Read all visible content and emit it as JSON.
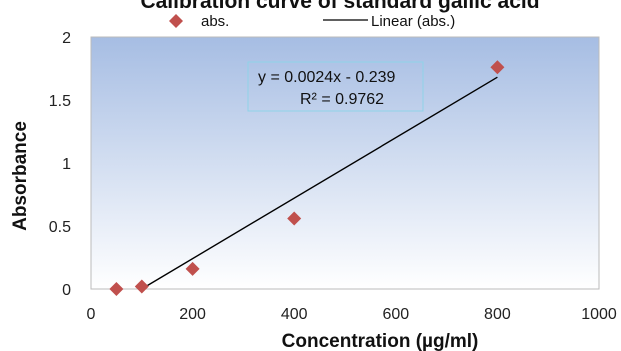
{
  "chart_data": {
    "type": "scatter",
    "title": "Calibration curve of standard gallic acid",
    "xlabel": "Concentration (µg/ml)",
    "ylabel": "Absorbance",
    "xlim": [
      0,
      1000
    ],
    "ylim": [
      0,
      2
    ],
    "xticks": [
      0,
      200,
      400,
      600,
      800,
      1000
    ],
    "yticks": [
      0,
      0.5,
      1,
      1.5,
      2
    ],
    "xtick_labels": [
      "0",
      "200",
      "400",
      "600",
      "800",
      "1000"
    ],
    "ytick_labels": [
      "0",
      "0.5",
      "1",
      "1.5",
      "2"
    ],
    "grid": false,
    "legend_position": "top",
    "series": [
      {
        "name": "abs.",
        "x": [
          50,
          100,
          200,
          400,
          800
        ],
        "y": [
          0.0,
          0.02,
          0.16,
          0.56,
          1.76
        ],
        "color": "#c0504d",
        "marker": "diamond"
      }
    ],
    "trendline": {
      "name": "Linear (abs.)",
      "slope": 0.0024,
      "intercept": -0.239,
      "x_range": [
        100,
        800
      ],
      "color": "#000000"
    },
    "equation_text": "y = 0.0024x - 0.239",
    "r2_text": "R² = 0.9762",
    "plot_background": {
      "top": "#a6bde3",
      "bottom": "#ffffff"
    }
  }
}
